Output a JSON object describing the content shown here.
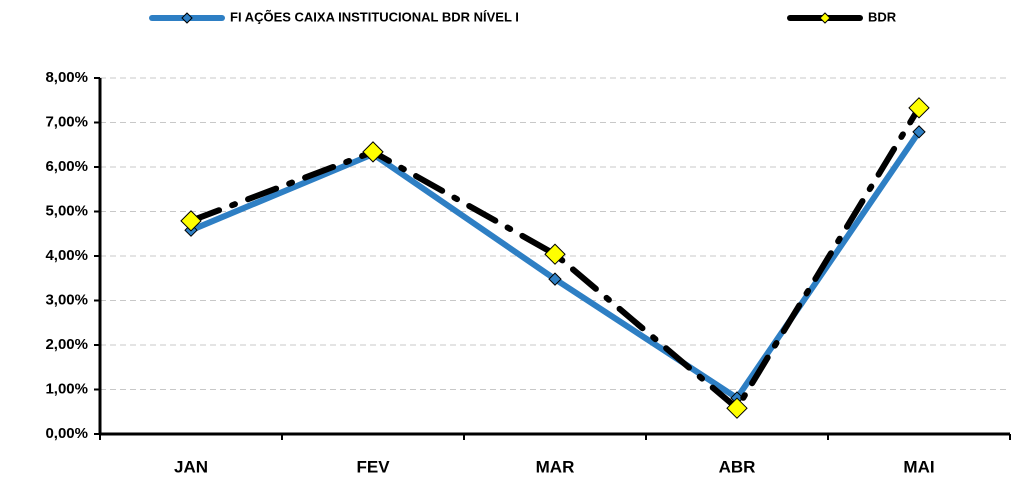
{
  "chart_data": {
    "type": "line",
    "categories": [
      "JAN",
      "FEV",
      "MAR",
      "ABR",
      "MAI"
    ],
    "series": [
      {
        "name": "FI AÇÕES CAIXA INSTITUCIONAL BDR NÍVEL I",
        "color": "#2e7fc4",
        "marker_color": "#2e7fc4",
        "values": [
          4.58,
          6.29,
          3.48,
          0.81,
          6.79
        ]
      },
      {
        "name": "BDR",
        "color": "#000000",
        "marker_color": "#ffff00",
        "values": [
          4.79,
          6.34,
          4.04,
          0.58,
          7.33
        ]
      }
    ],
    "ylim": [
      0,
      8
    ],
    "yticks": [
      {
        "value": 0,
        "label": "0,00%"
      },
      {
        "value": 1,
        "label": "1,00%"
      },
      {
        "value": 2,
        "label": "2,00%"
      },
      {
        "value": 3,
        "label": "3,00%"
      },
      {
        "value": 4,
        "label": "4,00%"
      },
      {
        "value": 5,
        "label": "5,00%"
      },
      {
        "value": 6,
        "label": "6,00%"
      },
      {
        "value": 7,
        "label": "7,00%"
      },
      {
        "value": 8,
        "label": "8,00%"
      }
    ],
    "grid": true,
    "legend": "top"
  }
}
